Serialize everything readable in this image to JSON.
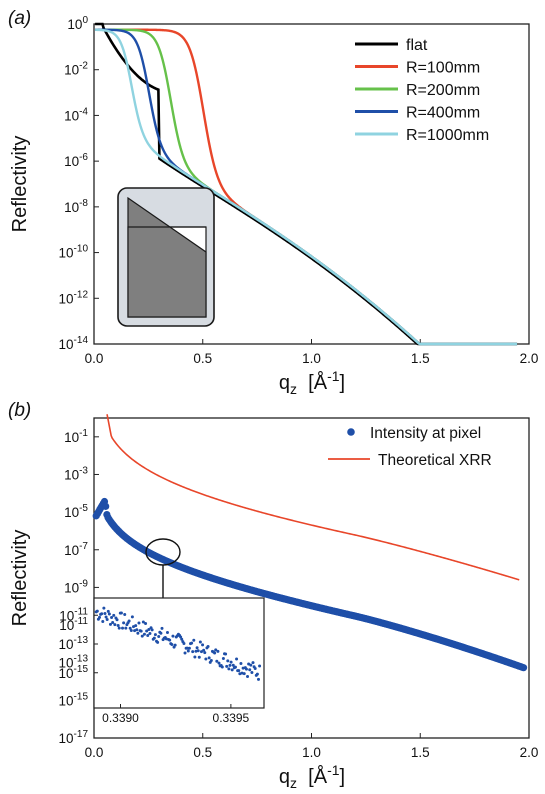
{
  "chart_data": [
    {
      "panel_label": "(a)",
      "type": "line",
      "xlabel": "q_z [Å^-1]",
      "xlabel_main": "q",
      "xlabel_sub": "z",
      "xlabel_unit": "[Å",
      "xlabel_unit_exp": "-1",
      "xlabel_unit_close": "]",
      "ylabel": "Reflectivity",
      "yscale": "log",
      "xlim": [
        0.0,
        2.0
      ],
      "ylim": [
        1e-14,
        1.0
      ],
      "xticks": [
        "0.0",
        "0.5",
        "1.0",
        "1.5",
        "2.0"
      ],
      "xtick_values": [
        0.0,
        0.5,
        1.0,
        1.5,
        2.0
      ],
      "yticks": [
        {
          "base": "10",
          "exp": "0",
          "value": 0
        },
        {
          "base": "10",
          "exp": "-2",
          "value": -2
        },
        {
          "base": "10",
          "exp": "-4",
          "value": -4
        },
        {
          "base": "10",
          "exp": "-6",
          "value": -6
        },
        {
          "base": "10",
          "exp": "-8",
          "value": -8
        },
        {
          "base": "10",
          "exp": "-10",
          "value": -10
        },
        {
          "base": "10",
          "exp": "-12",
          "value": -12
        },
        {
          "base": "10",
          "exp": "-14",
          "value": -14
        }
      ],
      "legend_position": "top-right",
      "series": [
        {
          "name": "flat",
          "color": "#000000",
          "critical_q": 0.04
        },
        {
          "name": "R=100mm",
          "color": "#e8462a",
          "critical_q": 0.5
        },
        {
          "name": "R=200mm",
          "color": "#66c14a",
          "critical_q": 0.35
        },
        {
          "name": "R=400mm",
          "color": "#1f4fa8",
          "critical_q": 0.25
        },
        {
          "name": "R=1000mm",
          "color": "#8fd3e0",
          "critical_q": 0.17
        }
      ]
    },
    {
      "panel_label": "(b)",
      "type": "scatter",
      "xlabel": "q_z [Å^-1]",
      "xlabel_main": "q",
      "xlabel_sub": "z",
      "xlabel_unit": "[Å",
      "xlabel_unit_exp": "-1",
      "xlabel_unit_close": "]",
      "ylabel": "Reflectivity",
      "yscale": "log",
      "xlim": [
        0.0,
        2.0
      ],
      "ylim": [
        1e-17,
        1.0
      ],
      "xticks": [
        "0.0",
        "0.5",
        "1.0",
        "1.5",
        "2.0"
      ],
      "xtick_values": [
        0.0,
        0.5,
        1.0,
        1.5,
        2.0
      ],
      "yticks": [
        {
          "base": "10",
          "exp": "-1",
          "value": -1
        },
        {
          "base": "10",
          "exp": "-3",
          "value": -3
        },
        {
          "base": "10",
          "exp": "-5",
          "value": -5
        },
        {
          "base": "10",
          "exp": "-7",
          "value": -7
        },
        {
          "base": "10",
          "exp": "-9",
          "value": -9
        },
        {
          "base": "10",
          "exp": "-11",
          "value": -11
        },
        {
          "base": "10",
          "exp": "-13",
          "value": -13
        },
        {
          "base": "10",
          "exp": "-15",
          "value": -15
        },
        {
          "base": "10",
          "exp": "-17",
          "value": -17
        }
      ],
      "legend_position": "top-right",
      "series": [
        {
          "name": "Intensity at pixel",
          "color": "#1f4fa8",
          "style": "markers"
        },
        {
          "name": "Theoretical XRR",
          "color": "#e8462a",
          "style": "line"
        }
      ],
      "annotation": "circle at q_z ≈ 0.35 with arrow to inset",
      "inset": {
        "xticks": [
          "0.3390",
          "0.3395"
        ],
        "xtick_values": [
          0.339,
          0.3395
        ],
        "xlim": [
          0.33888,
          0.33965
        ],
        "yticks": [
          {
            "base": "10",
            "exp": "-11",
            "value": -11
          },
          {
            "base": "10",
            "exp": "-13",
            "value": -13
          },
          {
            "base": "10",
            "exp": "-15",
            "value": -15
          }
        ],
        "ylim_exp": [
          -16.2,
          -9.8
        ]
      }
    }
  ]
}
